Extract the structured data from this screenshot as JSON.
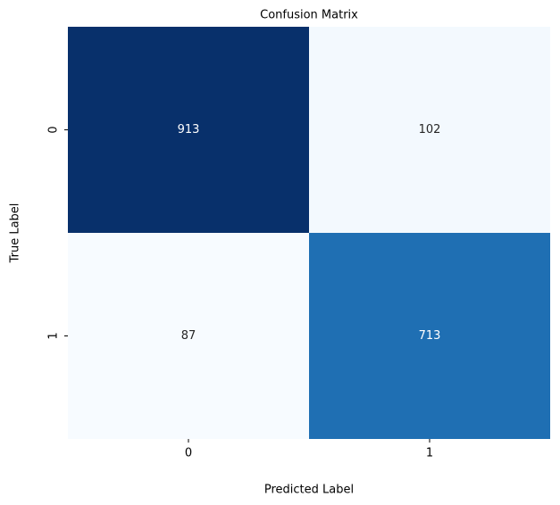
{
  "chart_data": {
    "type": "heatmap",
    "title": "Confusion Matrix",
    "x_label": "Predicted Label",
    "y_label": "True Label",
    "x_categories": [
      "0",
      "1"
    ],
    "y_categories": [
      "0",
      "1"
    ],
    "values": [
      [
        913,
        102
      ],
      [
        87,
        713
      ]
    ],
    "colormap": [
      "#f7fbff",
      "#deebf7",
      "#c6dbef",
      "#9ecae1",
      "#6baed6",
      "#4292c6",
      "#2171b5",
      "#08519c",
      "#08306b"
    ],
    "annotate": true
  }
}
